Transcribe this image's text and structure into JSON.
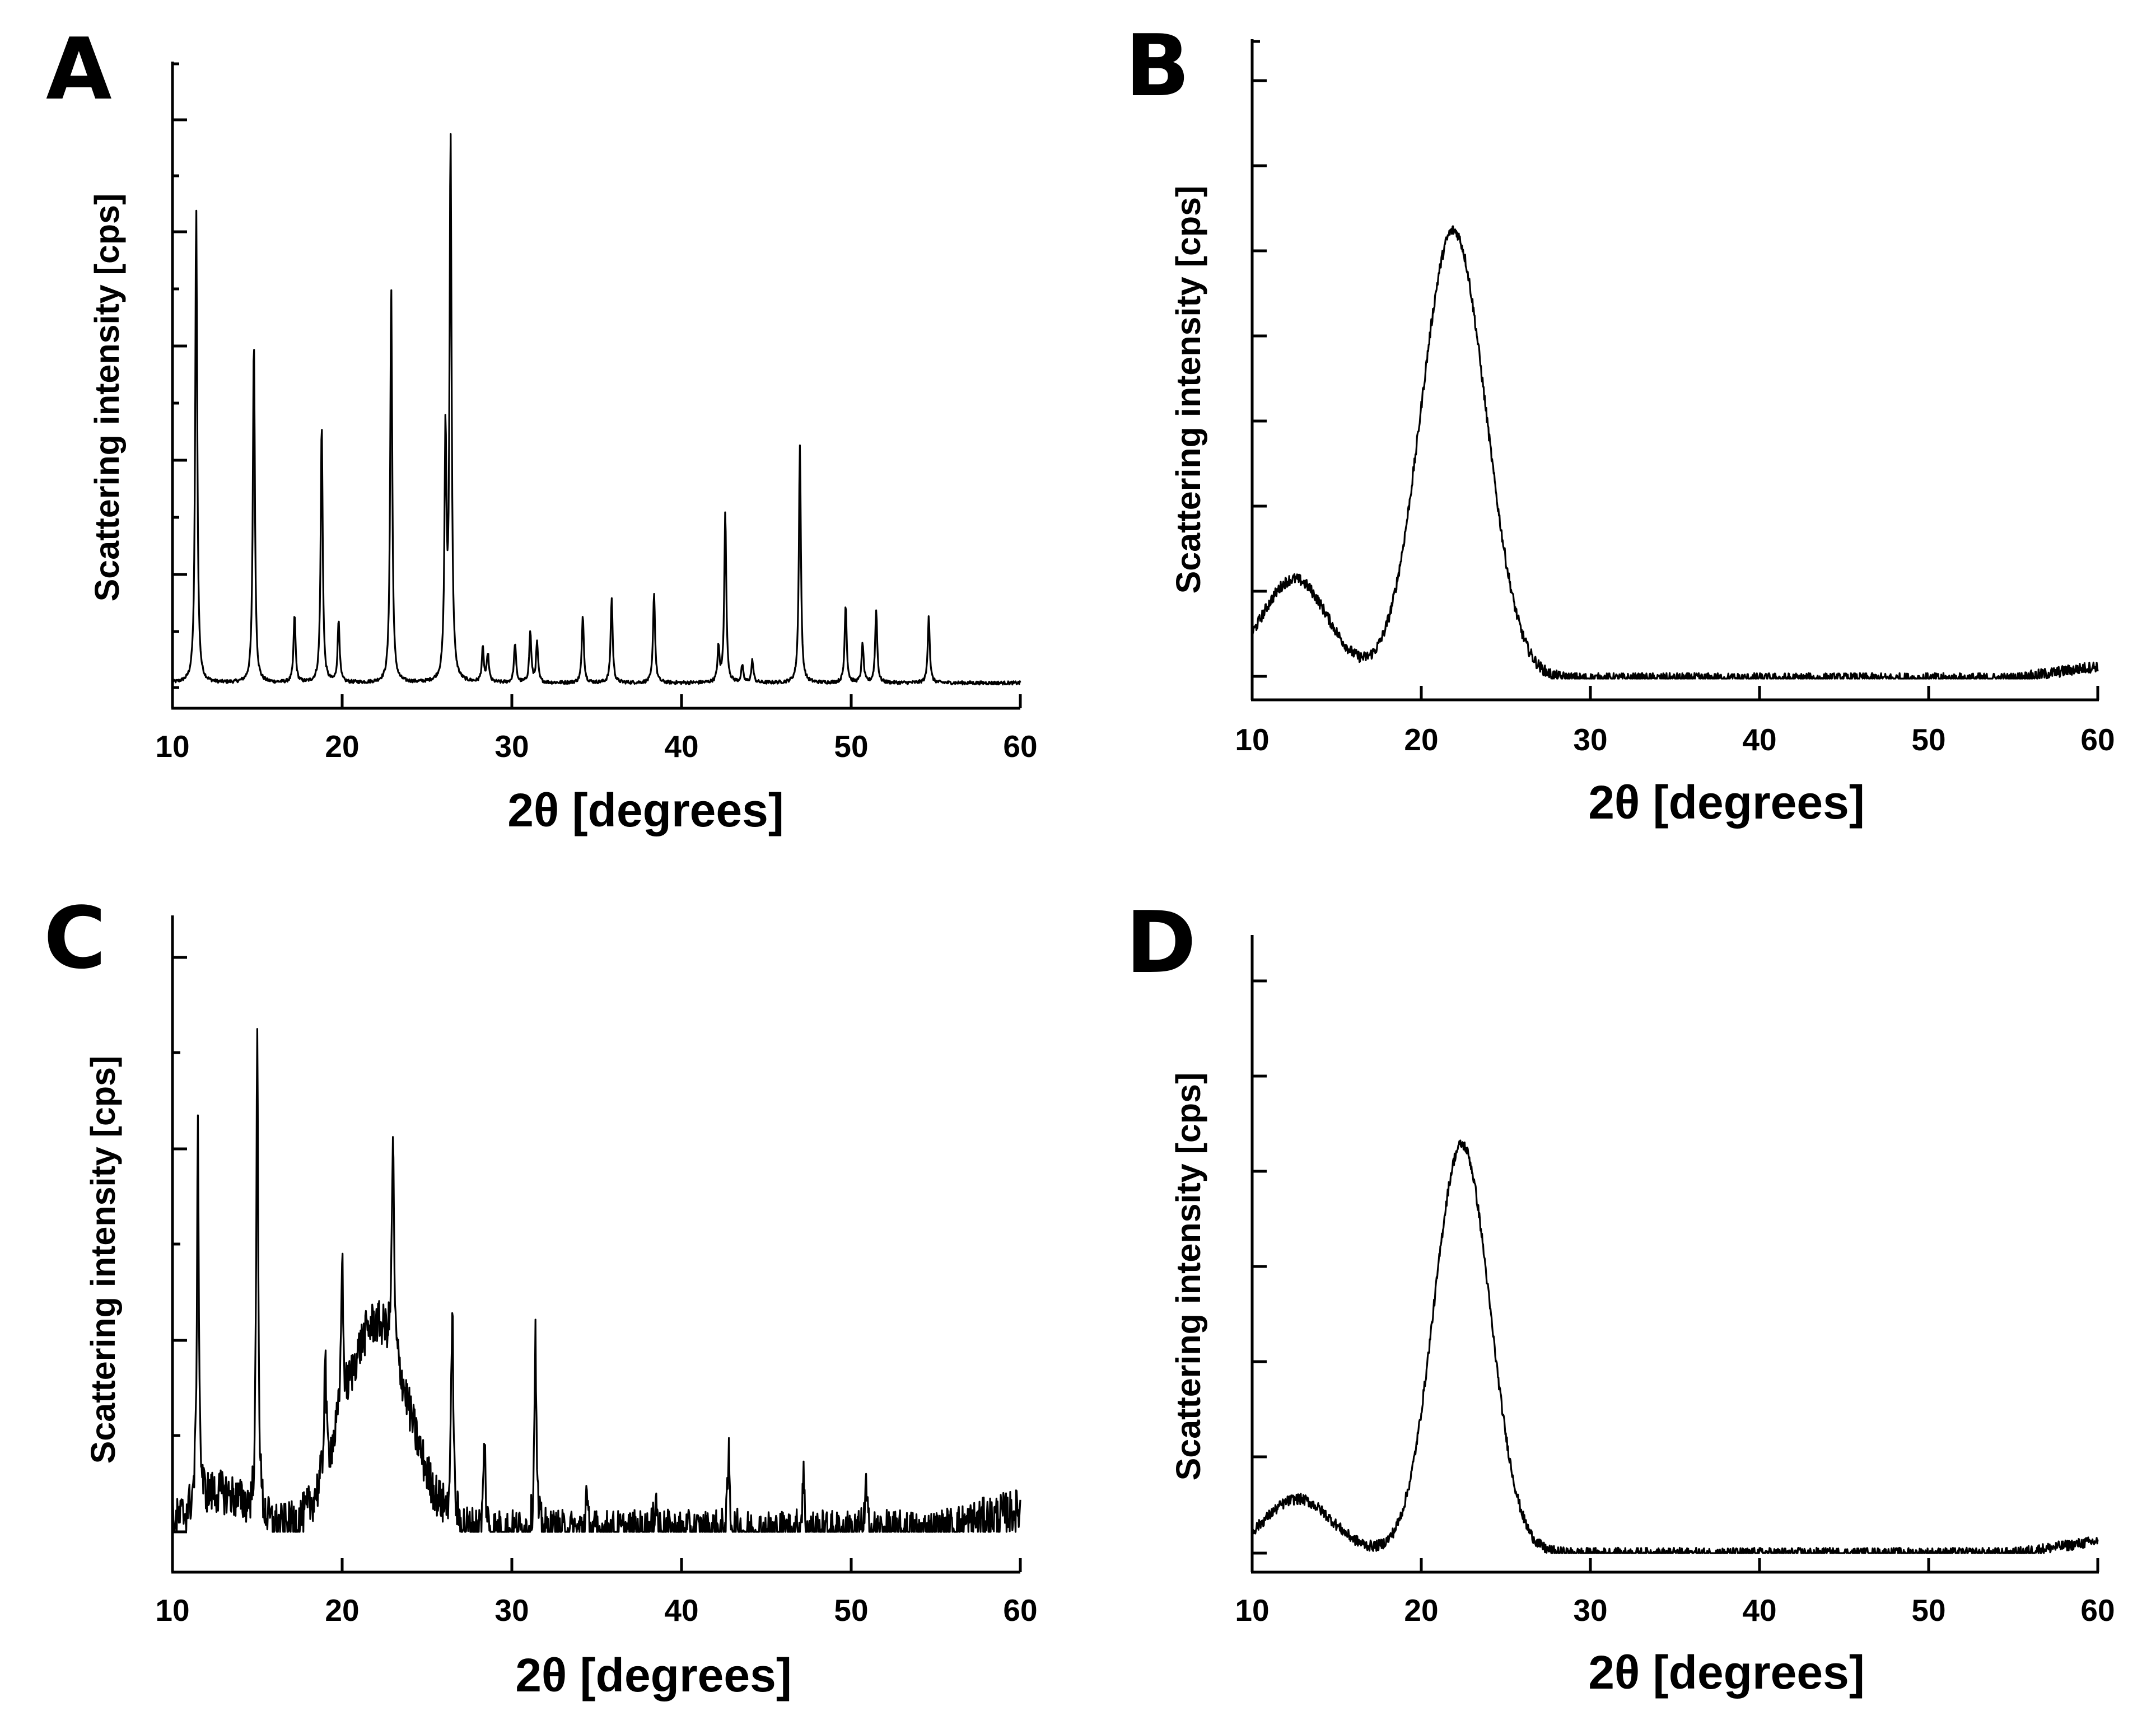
{
  "chart_data": [
    {
      "panel": "A",
      "type": "line",
      "xlabel": "2θ [degrees]",
      "ylabel": "Scattering intensity [cps]",
      "xlim": [
        10,
        60
      ],
      "xticks": [
        "10",
        "20",
        "30",
        "40",
        "50",
        "60"
      ],
      "ylim": [
        0,
        110
      ],
      "baseline": 2,
      "peaks": [
        {
          "x": 11.4,
          "h": 84
        },
        {
          "x": 14.8,
          "h": 61
        },
        {
          "x": 17.2,
          "h": 12
        },
        {
          "x": 18.8,
          "h": 46
        },
        {
          "x": 19.8,
          "h": 11
        },
        {
          "x": 22.9,
          "h": 70
        },
        {
          "x": 26.1,
          "h": 43
        },
        {
          "x": 26.4,
          "h": 96
        },
        {
          "x": 28.3,
          "h": 6
        },
        {
          "x": 28.6,
          "h": 5
        },
        {
          "x": 30.2,
          "h": 7
        },
        {
          "x": 31.1,
          "h": 9
        },
        {
          "x": 31.5,
          "h": 7
        },
        {
          "x": 34.2,
          "h": 12
        },
        {
          "x": 35.9,
          "h": 15
        },
        {
          "x": 38.4,
          "h": 16
        },
        {
          "x": 42.2,
          "h": 6
        },
        {
          "x": 42.6,
          "h": 30
        },
        {
          "x": 43.6,
          "h": 3
        },
        {
          "x": 44.2,
          "h": 4
        },
        {
          "x": 47.0,
          "h": 42
        },
        {
          "x": 49.7,
          "h": 14
        },
        {
          "x": 50.7,
          "h": 7
        },
        {
          "x": 51.5,
          "h": 13
        },
        {
          "x": 54.6,
          "h": 12
        }
      ]
    },
    {
      "panel": "B",
      "type": "line",
      "xlabel": "2θ [degrees]",
      "ylabel": "Scattering intensity [cps]",
      "xlim": [
        10,
        60
      ],
      "xticks": [
        "10",
        "20",
        "30",
        "40",
        "50",
        "60"
      ],
      "ylim": [
        0,
        100
      ],
      "humps": [
        {
          "center": 12.5,
          "height": 16,
          "width": 2.0
        },
        {
          "center": 21.9,
          "height": 72,
          "width": 1.9
        }
      ],
      "tail_rise": 2,
      "noise": 0.9
    },
    {
      "panel": "C",
      "type": "line",
      "xlabel": "2θ [degrees]",
      "ylabel": "Scattering intensity [cps]",
      "xlim": [
        10,
        60
      ],
      "xticks": [
        "10",
        "20",
        "30",
        "40",
        "50",
        "60"
      ],
      "ylim": [
        0,
        110
      ],
      "humps": [
        {
          "center": 22.0,
          "height": 38,
          "width": 1.9
        },
        {
          "center": 12.8,
          "height": 7,
          "width": 1.6
        }
      ],
      "peaks": [
        {
          "x": 11.5,
          "h": 67
        },
        {
          "x": 15.0,
          "h": 88
        },
        {
          "x": 19.0,
          "h": 22
        },
        {
          "x": 20.0,
          "h": 30
        },
        {
          "x": 23.0,
          "h": 40
        },
        {
          "x": 26.5,
          "h": 41
        },
        {
          "x": 28.4,
          "h": 17
        },
        {
          "x": 31.4,
          "h": 36
        },
        {
          "x": 34.4,
          "h": 7
        },
        {
          "x": 38.5,
          "h": 8
        },
        {
          "x": 42.8,
          "h": 14
        },
        {
          "x": 47.2,
          "h": 11
        },
        {
          "x": 50.9,
          "h": 8
        }
      ],
      "tail_rise": 4,
      "noise": 4
    },
    {
      "panel": "D",
      "type": "line",
      "xlabel": "2θ [degrees]",
      "ylabel": "Scattering intensity [cps]",
      "xlim": [
        10,
        60
      ],
      "xticks": [
        "10",
        "20",
        "30",
        "40",
        "50",
        "60"
      ],
      "ylim": [
        0,
        100
      ],
      "humps": [
        {
          "center": 12.7,
          "height": 9,
          "width": 2.0
        },
        {
          "center": 22.4,
          "height": 68,
          "width": 1.65
        }
      ],
      "tail_rise": 2,
      "noise": 0.9
    }
  ]
}
